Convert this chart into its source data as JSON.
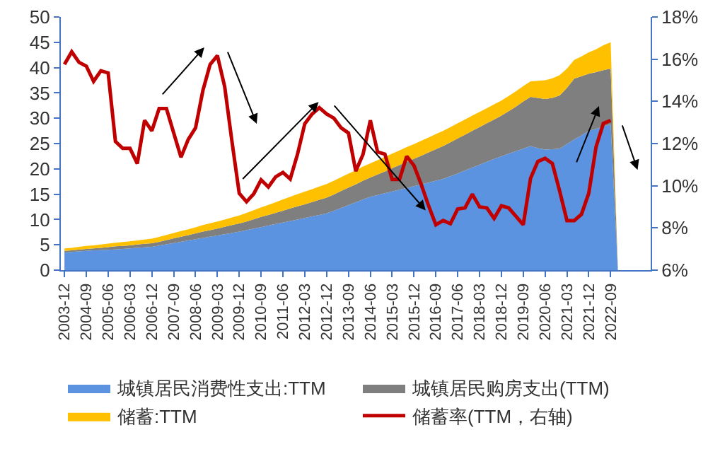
{
  "chart_data": {
    "type": "area",
    "stacked": true,
    "legend": "bottom",
    "grid": false,
    "categories": [
      "2003-12",
      null,
      null,
      "2004-09",
      null,
      null,
      "2005-06",
      null,
      null,
      "2006-03",
      null,
      null,
      "2006-12",
      null,
      null,
      "2007-09",
      null,
      null,
      "2008-06",
      null,
      null,
      "2009-03",
      null,
      null,
      "2009-12",
      null,
      null,
      "2010-09",
      null,
      null,
      "2011-06",
      null,
      null,
      "2012-03",
      null,
      null,
      "2012-12",
      null,
      null,
      "2013-09",
      null,
      null,
      "2014-06",
      null,
      null,
      "2015-03",
      null,
      null,
      "2015-12",
      null,
      null,
      "2016-09",
      null,
      null,
      "2017-06",
      null,
      null,
      "2018-03",
      null,
      null,
      "2018-12",
      null,
      null,
      "2019-09",
      null,
      null,
      "2020-06",
      null,
      null,
      "2021-03",
      null,
      null,
      "2021-12",
      null,
      null,
      "2022-09",
      null,
      null,
      null,
      null,
      null
    ],
    "ylim": [
      0,
      50
    ],
    "yticks": [
      0,
      5,
      10,
      15,
      20,
      25,
      30,
      35,
      40,
      45,
      50
    ],
    "y2lim": [
      6,
      18
    ],
    "y2ticks": [
      {
        "value": 6,
        "label": "6%"
      },
      {
        "value": 8,
        "label": "8%"
      },
      {
        "value": 10,
        "label": "10%"
      },
      {
        "value": 12,
        "label": "12%"
      },
      {
        "value": 14,
        "label": "14%"
      },
      {
        "value": 16,
        "label": "16%"
      },
      {
        "value": 18,
        "label": "18%"
      }
    ],
    "series": [
      {
        "name": "城镇居民消费性支出:TTM",
        "color": "#5b93e0",
        "values": [
          3.5,
          3.6,
          3.7,
          3.8,
          3.9,
          3.95,
          4.0,
          4.1,
          4.2,
          4.3,
          4.4,
          4.5,
          4.6,
          4.85,
          5.1,
          5.35,
          5.6,
          5.85,
          6.1,
          6.35,
          6.6,
          6.85,
          7.1,
          7.35,
          7.6,
          7.9,
          8.2,
          8.5,
          8.8,
          9.1,
          9.4,
          9.7,
          10.0,
          10.3,
          10.6,
          10.9,
          11.2,
          11.75,
          12.3,
          12.85,
          13.4,
          13.95,
          14.5,
          14.85,
          15.2,
          15.55,
          15.9,
          16.25,
          16.6,
          16.95,
          17.3,
          17.65,
          18.0,
          18.55,
          19.1,
          19.7,
          20.25,
          20.8,
          21.4,
          21.95,
          22.5,
          23.0,
          23.5,
          24.0,
          24.5,
          24.1,
          23.8,
          23.9,
          24.0,
          24.9,
          25.8,
          26.6,
          27.5,
          27.9,
          28.4,
          28.8,
          0,
          null,
          null,
          null,
          null
        ]
      },
      {
        "name": "城镇居民购房支出(TTM)",
        "color": "#7f7f7f",
        "values": [
          0.3,
          0.3,
          0.35,
          0.4,
          0.4,
          0.45,
          0.55,
          0.6,
          0.6,
          0.6,
          0.65,
          0.7,
          0.7,
          0.75,
          0.85,
          0.95,
          1.0,
          1.05,
          1.15,
          1.25,
          1.3,
          1.35,
          1.45,
          1.55,
          1.6,
          1.7,
          1.85,
          2.0,
          2.1,
          2.2,
          2.35,
          2.5,
          2.6,
          2.7,
          2.85,
          3.0,
          3.1,
          3.2,
          3.35,
          3.45,
          3.55,
          3.7,
          3.8,
          4.05,
          4.3,
          4.6,
          4.85,
          5.15,
          5.4,
          5.65,
          5.95,
          6.25,
          6.5,
          6.7,
          6.9,
          7.05,
          7.25,
          7.45,
          7.6,
          7.8,
          8.0,
          8.4,
          8.8,
          9.3,
          9.7,
          9.9,
          10.0,
          10.1,
          10.5,
          11.1,
          12.0,
          11.7,
          11.3,
          11.2,
          11.1,
          11.0,
          0,
          null,
          null,
          null,
          null
        ]
      },
      {
        "name": "储蓄:TTM",
        "color": "#ffc000",
        "values": [
          0.5,
          0.5,
          0.55,
          0.6,
          0.6,
          0.65,
          0.7,
          0.7,
          0.75,
          0.8,
          0.8,
          0.85,
          0.9,
          0.95,
          1.0,
          1.05,
          1.1,
          1.15,
          1.2,
          1.3,
          1.35,
          1.4,
          1.45,
          1.5,
          1.6,
          1.7,
          1.8,
          1.9,
          2.0,
          2.1,
          2.2,
          2.3,
          2.4,
          2.5,
          2.55,
          2.6,
          2.7,
          2.7,
          2.7,
          2.75,
          2.75,
          2.8,
          2.8,
          2.8,
          2.85,
          2.85,
          2.9,
          2.9,
          2.9,
          2.95,
          2.95,
          3.0,
          3.0,
          3.0,
          3.0,
          3.0,
          3.0,
          3.0,
          3.0,
          3.0,
          3.0,
          3.0,
          3.05,
          3.05,
          3.1,
          3.4,
          3.7,
          3.9,
          4.0,
          3.8,
          3.7,
          3.9,
          4.2,
          4.5,
          4.9,
          5.2,
          0,
          null,
          null,
          null,
          null
        ]
      },
      {
        "name": "储蓄率(TTM，右轴)",
        "type": "line",
        "axis": "y2",
        "color": "#c00000",
        "values": [
          15.75,
          16.35,
          15.85,
          15.67,
          14.95,
          15.45,
          15.35,
          12.1,
          11.77,
          11.77,
          11.05,
          13.1,
          12.6,
          13.66,
          13.66,
          12.5,
          11.35,
          12.2,
          12.74,
          14.5,
          15.75,
          16.17,
          14.7,
          12.1,
          9.64,
          9.24,
          9.62,
          10.28,
          9.94,
          10.42,
          10.63,
          10.32,
          11.49,
          12.94,
          13.4,
          13.7,
          13.4,
          13.2,
          12.74,
          12.5,
          10.69,
          11.49,
          13.1,
          11.6,
          11.5,
          10.3,
          10.3,
          11.4,
          10.95,
          10.05,
          9.05,
          8.15,
          8.35,
          8.2,
          8.9,
          8.95,
          9.6,
          9.0,
          8.95,
          8.45,
          9.05,
          8.95,
          8.55,
          8.15,
          10.35,
          11.15,
          11.3,
          11.05,
          9.75,
          8.35,
          8.35,
          8.65,
          9.65,
          11.85,
          12.95,
          13.1,
          null,
          null,
          null,
          null,
          null
        ]
      }
    ]
  }
}
